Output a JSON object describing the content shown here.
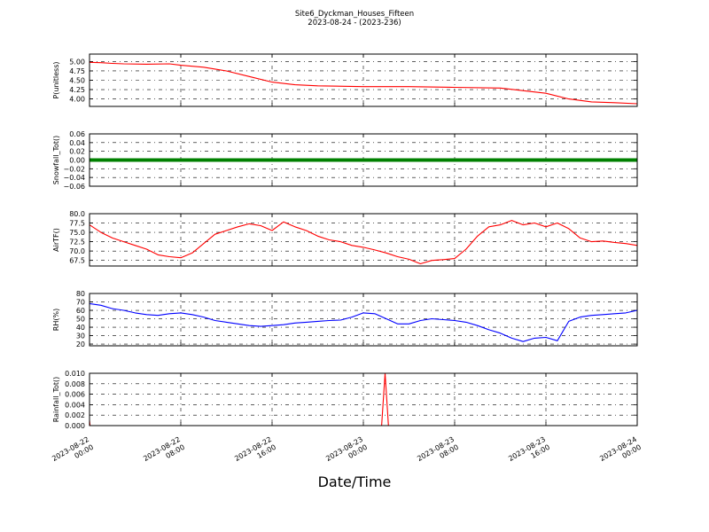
{
  "figure": {
    "title": "Site6_Dyckman_Houses_Fifteen",
    "subtitle": "2023-08-24 - (2023-236)",
    "xlabel": "Date/Time"
  },
  "chart_data": [
    {
      "type": "line",
      "ylabel": "P(unitless)",
      "color": "#ff0000",
      "ylim": [
        3.8,
        5.2
      ],
      "yticks": [
        "5.00",
        "4.75",
        "4.50",
        "4.25",
        "4.00"
      ],
      "ytick_values": [
        5.0,
        4.75,
        4.5,
        4.25,
        4.0
      ],
      "series": [
        {
          "x_hours": [
            0,
            1,
            2,
            3,
            5,
            7,
            8,
            10,
            12,
            14,
            16,
            18,
            20,
            24,
            28,
            32,
            36,
            40,
            42,
            44,
            46,
            48
          ],
          "values": [
            4.98,
            4.97,
            4.95,
            4.94,
            4.93,
            4.94,
            4.9,
            4.85,
            4.75,
            4.6,
            4.45,
            4.38,
            4.35,
            4.33,
            4.33,
            4.31,
            4.29,
            4.15,
            4.0,
            3.92,
            3.9,
            3.87
          ]
        }
      ]
    },
    {
      "type": "line",
      "ylabel": "Snowfall_Tot()",
      "color": "#008000",
      "ylim": [
        -0.06,
        0.06
      ],
      "yticks": [
        "0.06",
        "0.04",
        "0.02",
        "0.00",
        "−0.02",
        "−0.04",
        "−0.06"
      ],
      "ytick_values": [
        0.06,
        0.04,
        0.02,
        0.0,
        -0.02,
        -0.04,
        -0.06
      ],
      "series": [
        {
          "x_hours": [
            0,
            48
          ],
          "values": [
            0,
            0
          ]
        }
      ]
    },
    {
      "type": "line",
      "ylabel": "AirTF()",
      "color": "#ff0000",
      "ylim": [
        66.0,
        80.0
      ],
      "yticks": [
        "80.0",
        "77.5",
        "75.0",
        "72.5",
        "70.0",
        "67.5"
      ],
      "ytick_values": [
        80.0,
        77.5,
        75.0,
        72.5,
        70.0,
        67.5
      ],
      "series": [
        {
          "x_hours": [
            0,
            1,
            2,
            3,
            4,
            5,
            6,
            7,
            8,
            9,
            10,
            11,
            12,
            13,
            14,
            15,
            16,
            17,
            18,
            19,
            20,
            21,
            22,
            23,
            24,
            25,
            26,
            27,
            28,
            29,
            30,
            31,
            32,
            33,
            34,
            35,
            36,
            37,
            38,
            39,
            40,
            41,
            42,
            43,
            44,
            45,
            46,
            47,
            48
          ],
          "values": [
            77.0,
            75.0,
            73.5,
            72.5,
            71.5,
            70.5,
            69.0,
            68.5,
            68.2,
            69.5,
            72.0,
            74.5,
            75.5,
            76.5,
            77.3,
            76.8,
            75.5,
            77.8,
            76.5,
            75.5,
            74.0,
            73.0,
            72.5,
            71.5,
            71.0,
            70.3,
            69.5,
            68.5,
            67.8,
            66.6,
            67.5,
            67.7,
            68.0,
            70.5,
            74.0,
            76.5,
            77.0,
            78.2,
            77.0,
            77.5,
            76.5,
            77.5,
            76.0,
            73.5,
            72.5,
            72.7,
            72.3,
            72.0,
            71.5
          ]
        }
      ]
    },
    {
      "type": "line",
      "ylabel": "RH(%)",
      "color": "#0000ff",
      "ylim": [
        18,
        80
      ],
      "yticks": [
        "80",
        "70",
        "60",
        "50",
        "40",
        "30",
        "20"
      ],
      "ytick_values": [
        80,
        70,
        60,
        50,
        40,
        30,
        20
      ],
      "series": [
        {
          "x_hours": [
            0,
            1,
            2,
            3,
            4,
            5,
            6,
            7,
            8,
            9,
            10,
            11,
            12,
            13,
            14,
            15,
            16,
            17,
            18,
            19,
            20,
            21,
            22,
            23,
            24,
            25,
            26,
            27,
            28,
            29,
            30,
            31,
            32,
            33,
            34,
            35,
            36,
            37,
            38,
            39,
            40,
            41,
            42,
            43,
            44,
            45,
            46,
            47,
            48
          ],
          "values": [
            68.0,
            66.0,
            62.0,
            60.0,
            57.0,
            55.0,
            54.0,
            56.0,
            57.0,
            55.0,
            52.0,
            48.0,
            46.0,
            44.0,
            42.0,
            41.0,
            42.0,
            43.0,
            45.0,
            46.0,
            47.0,
            48.0,
            48.5,
            52.0,
            57.0,
            56.0,
            50.0,
            44.0,
            44.0,
            48.0,
            50.0,
            49.0,
            48.0,
            46.0,
            42.0,
            37.0,
            33.0,
            27.0,
            23.0,
            27.0,
            28.0,
            24.0,
            47.0,
            52.0,
            54.0,
            55.0,
            56.0,
            57.0,
            60.0
          ]
        }
      ]
    },
    {
      "type": "line",
      "ylabel": "Rainfall_Tot()",
      "color": "#ff0000",
      "ylim": [
        0.0,
        0.01
      ],
      "yticks": [
        "0.010",
        "0.008",
        "0.006",
        "0.004",
        "0.002",
        "0.000"
      ],
      "ytick_values": [
        0.01,
        0.008,
        0.006,
        0.004,
        0.002,
        0.0
      ],
      "series": [
        {
          "x_hours": [
            0,
            0.05,
            0.1,
            25.6,
            25.9,
            26.2,
            48
          ],
          "values": [
            0.001,
            0.0,
            0.0,
            0.0,
            0.01,
            0.0,
            0.0
          ]
        }
      ]
    }
  ],
  "x_axis": {
    "xlim_hours": [
      0,
      48
    ],
    "tick_hours": [
      0,
      8,
      16,
      24,
      32,
      40,
      48
    ],
    "tick_labels": [
      [
        "2023-08-22",
        "00:00"
      ],
      [
        "2023-08-22",
        "08:00"
      ],
      [
        "2023-08-22",
        "16:00"
      ],
      [
        "2023-08-23",
        "00:00"
      ],
      [
        "2023-08-23",
        "08:00"
      ],
      [
        "2023-08-23",
        "16:00"
      ],
      [
        "2023-08-24",
        "00:00"
      ]
    ]
  }
}
